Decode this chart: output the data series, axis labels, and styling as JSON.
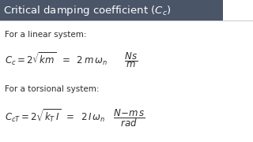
{
  "title": "Critical damping coefficient ($C_c$)",
  "title_bg_color": "#4a5568",
  "title_text_color": "#ffffff",
  "bg_color": "#ffffff",
  "text_color": "#2d2d2d",
  "linear_label": "For a linear system:",
  "linear_eq": "$C_c = 2\\sqrt{km}\\;\\; = \\;\\; 2\\,m\\,\\omega_n \\qquad \\dfrac{Ns}{m}$",
  "torsional_label": "For a torsional system:",
  "torsional_eq": "$C_{cT} = 2\\sqrt{k_T\\,I}\\;\\; = \\;\\; 2\\,I\\,\\omega_n \\quad \\dfrac{N{-}m\\,s}{rad}$",
  "line_color": "#cccccc",
  "figsize": [
    3.2,
    1.8
  ],
  "dpi": 100
}
